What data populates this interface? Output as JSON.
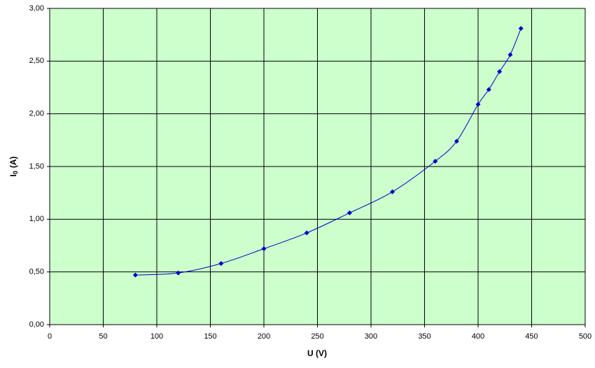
{
  "chart_data": {
    "type": "scatter",
    "xlabel": "U (V)",
    "ylabel_parts": [
      "I",
      "0",
      "(A)"
    ],
    "xlim": [
      0,
      500
    ],
    "xticks": [
      0,
      50,
      100,
      150,
      200,
      250,
      300,
      350,
      400,
      450,
      500
    ],
    "ylim": [
      0,
      3
    ],
    "yticks": [
      {
        "value": 0,
        "label": "0,00"
      },
      {
        "value": 0.5,
        "label": "0,50"
      },
      {
        "value": 1,
        "label": "1,00"
      },
      {
        "value": 1.5,
        "label": "1,50"
      },
      {
        "value": 2,
        "label": "2,00"
      },
      {
        "value": 2.5,
        "label": "2,50"
      },
      {
        "value": 3,
        "label": "3,00"
      }
    ],
    "grid": true,
    "background": "#ccffcc",
    "smooth": true,
    "series": [
      {
        "color": "#0000cc",
        "x": [
          80,
          120,
          160,
          200,
          240,
          280,
          320,
          360,
          380,
          400,
          410,
          420,
          430,
          440
        ],
        "values": [
          0.47,
          0.49,
          0.58,
          0.72,
          0.87,
          1.06,
          1.26,
          1.55,
          1.74,
          2.09,
          2.23,
          2.4,
          2.56,
          2.81
        ]
      }
    ]
  }
}
